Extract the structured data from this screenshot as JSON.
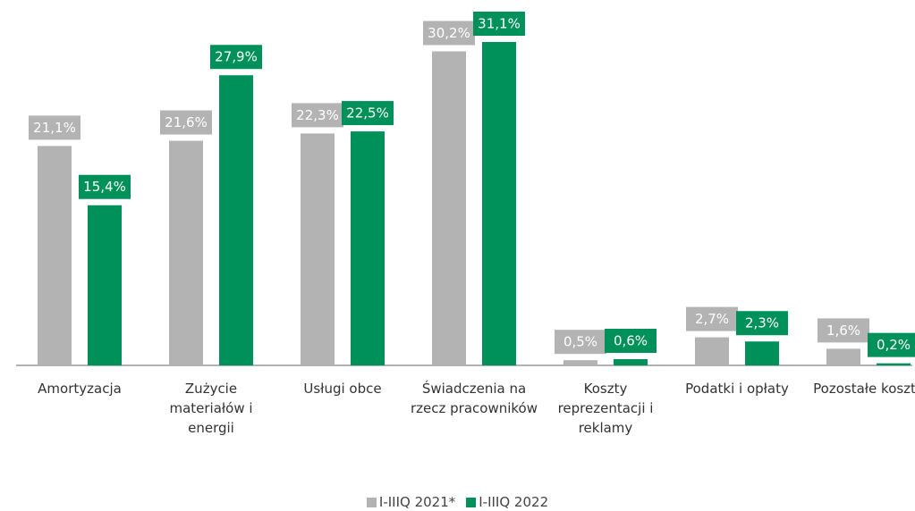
{
  "chart_data": {
    "type": "bar",
    "categories": [
      "Amortyzacja",
      "Zużycie materiałów i energii",
      "Usługi obce",
      "Świadczenia na rzecz pracowników",
      "Koszty reprezentacji i reklamy",
      "Podatki i opłaty",
      "Pozostałe koszty"
    ],
    "series": [
      {
        "name": "I-IIIQ 2021*",
        "color": "#b3b3b3",
        "values": [
          21.1,
          21.6,
          22.3,
          30.2,
          0.5,
          2.7,
          1.6
        ],
        "value_labels": [
          "21,1%",
          "21,6%",
          "22,3%",
          "30,2%",
          "0,5%",
          "2,7%",
          "1,6%"
        ]
      },
      {
        "name": "I-IIIQ 2022",
        "color": "#00915a",
        "values": [
          15.4,
          27.9,
          22.5,
          31.1,
          0.6,
          2.3,
          0.2
        ],
        "value_labels": [
          "15,4%",
          "27,9%",
          "22,5%",
          "31,1%",
          "0,6%",
          "2,3%",
          "0,2%"
        ]
      }
    ]
  }
}
